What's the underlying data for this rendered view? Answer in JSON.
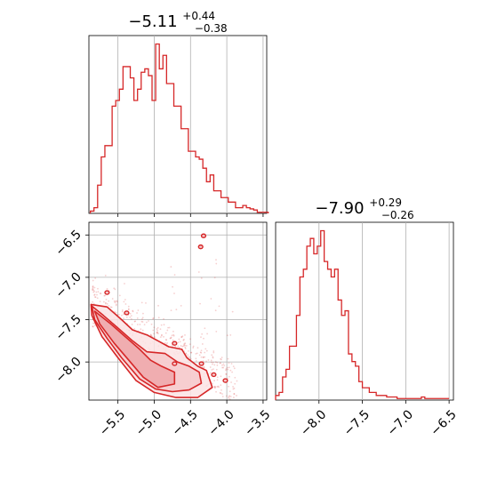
{
  "chart_data": [
    {
      "type": "histogram",
      "panel": "marginal-param-1",
      "title": {
        "main": "−5.11",
        "sup": "+0.44",
        "sub": "−0.38"
      },
      "xlim": [
        -5.9,
        -3.45
      ],
      "x_ticks": [
        -5.5,
        -5.0,
        -4.5,
        -4.0,
        -3.5
      ],
      "x_tick_labels": [],
      "grid": true,
      "bins": {
        "start": -5.88,
        "width": 0.05,
        "counts": [
          2,
          5,
          25,
          50,
          60,
          60,
          95,
          100,
          110,
          130,
          130,
          120,
          100,
          110,
          125,
          128,
          122,
          100,
          150,
          128,
          140,
          115,
          115,
          95,
          95,
          75,
          75,
          55,
          55,
          50,
          48,
          40,
          28,
          34,
          20,
          20,
          14,
          14,
          10,
          10,
          5,
          5,
          7,
          5,
          4,
          3,
          1,
          1,
          1
        ]
      },
      "color": "#d62728"
    },
    {
      "type": "histogram",
      "panel": "marginal-param-2",
      "title": {
        "main": "−7.90",
        "sup": "+0.29",
        "sub": "−0.26"
      },
      "xlim": [
        -8.5,
        -6.45
      ],
      "x_ticks": [
        -8.0,
        -7.5,
        -7.0,
        -6.5
      ],
      "x_tick_labels": [
        "−8.0",
        "−7.5",
        "−7.0",
        "−6.5"
      ],
      "grid": true,
      "bins": {
        "start": -8.5,
        "width": 0.04,
        "counts": [
          3,
          5,
          15,
          20,
          35,
          35,
          55,
          80,
          85,
          100,
          105,
          95,
          100,
          110,
          90,
          85,
          80,
          85,
          65,
          55,
          58,
          30,
          25,
          22,
          12,
          8,
          8,
          5,
          5,
          3,
          3,
          3,
          2,
          2,
          2,
          1,
          1,
          1,
          1,
          1,
          1,
          1,
          2,
          1,
          1,
          1,
          1,
          1,
          1,
          1
        ]
      },
      "color": "#d62728"
    },
    {
      "type": "scatter+contour",
      "panel": "joint",
      "xlim": [
        -5.9,
        -3.45
      ],
      "ylim": [
        -8.45,
        -6.35
      ],
      "x_ticks": [
        -5.5,
        -5.0,
        -4.5,
        -4.0,
        -3.5
      ],
      "x_tick_labels": [
        "−5.5",
        "−5.0",
        "−4.5",
        "−4.0",
        "−3.5"
      ],
      "y_ticks": [
        -6.5,
        -7.0,
        -7.5,
        -8.0
      ],
      "y_tick_labels": [
        "−6.5",
        "−7.0",
        "−7.5",
        "−8.0"
      ],
      "grid": true,
      "color": "#d62728",
      "fill_color": "#f4c7c8",
      "contours": [
        [
          [
            -5.82,
            -7.4
          ],
          [
            -5.6,
            -7.55
          ],
          [
            -5.4,
            -7.7
          ],
          [
            -5.2,
            -7.85
          ],
          [
            -5.05,
            -7.98
          ],
          [
            -4.9,
            -8.05
          ],
          [
            -4.72,
            -8.12
          ],
          [
            -4.72,
            -8.26
          ],
          [
            -4.95,
            -8.3
          ],
          [
            -5.15,
            -8.18
          ],
          [
            -5.35,
            -7.98
          ],
          [
            -5.55,
            -7.78
          ],
          [
            -5.75,
            -7.55
          ]
        ],
        [
          [
            -5.86,
            -7.34
          ],
          [
            -5.7,
            -7.45
          ],
          [
            -5.5,
            -7.6
          ],
          [
            -5.3,
            -7.75
          ],
          [
            -5.1,
            -7.88
          ],
          [
            -4.85,
            -7.9
          ],
          [
            -4.68,
            -8.0
          ],
          [
            -4.52,
            -8.05
          ],
          [
            -4.38,
            -8.12
          ],
          [
            -4.35,
            -8.25
          ],
          [
            -4.52,
            -8.33
          ],
          [
            -4.75,
            -8.35
          ],
          [
            -4.98,
            -8.32
          ],
          [
            -5.2,
            -8.2
          ],
          [
            -5.45,
            -7.95
          ],
          [
            -5.65,
            -7.72
          ],
          [
            -5.82,
            -7.5
          ]
        ],
        [
          [
            -5.87,
            -7.32
          ],
          [
            -5.65,
            -7.35
          ],
          [
            -5.45,
            -7.5
          ],
          [
            -5.3,
            -7.62
          ],
          [
            -5.1,
            -7.68
          ],
          [
            -4.95,
            -7.75
          ],
          [
            -4.8,
            -7.82
          ],
          [
            -4.62,
            -7.85
          ],
          [
            -4.55,
            -7.95
          ],
          [
            -4.4,
            -8.05
          ],
          [
            -4.28,
            -8.1
          ],
          [
            -4.2,
            -8.3
          ],
          [
            -4.4,
            -8.42
          ],
          [
            -4.7,
            -8.42
          ],
          [
            -5.0,
            -8.36
          ],
          [
            -5.25,
            -8.22
          ],
          [
            -5.5,
            -7.95
          ],
          [
            -5.72,
            -7.7
          ],
          [
            -5.86,
            -7.45
          ]
        ]
      ],
      "islands": [
        [
          -5.65,
          -7.18
        ],
        [
          -5.38,
          -7.42
        ],
        [
          -4.72,
          -7.78
        ],
        [
          -4.72,
          -8.02
        ],
        [
          -4.35,
          -8.02
        ],
        [
          -4.18,
          -8.15
        ],
        [
          -4.02,
          -8.22
        ],
        [
          -4.36,
          -6.64
        ],
        [
          -4.32,
          -6.51
        ]
      ]
    }
  ]
}
